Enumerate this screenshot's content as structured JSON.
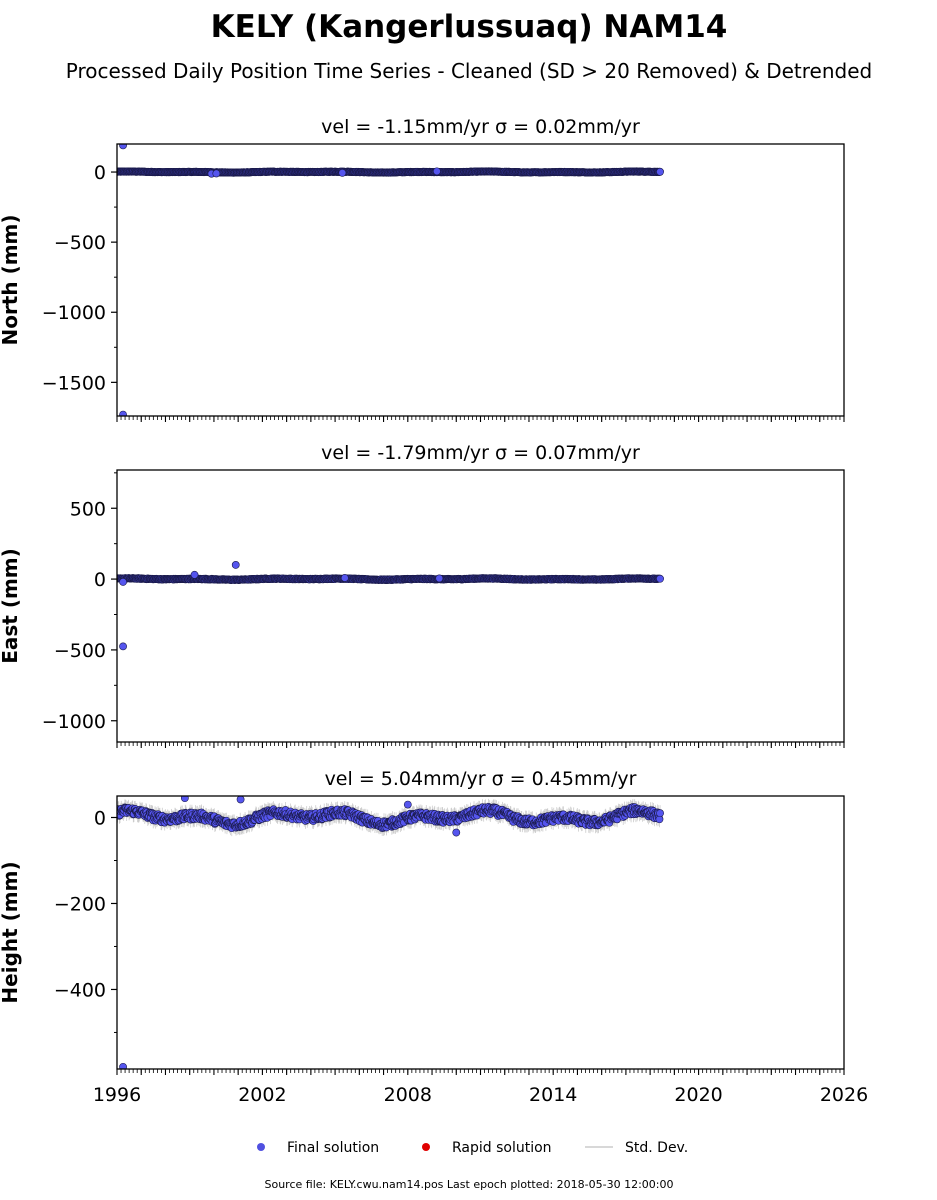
{
  "figure": {
    "title": "KELY (Kangerlussuaq) NAM14",
    "subtitle": "Processed Daily Position Time Series - Cleaned (SD > 20 Removed) & Detrended",
    "footer": "Source file: KELY.cwu.nam14.pos  Last epoch plotted: 2018-05-30 12:00:00"
  },
  "legend": {
    "placement": "bottom-center",
    "items": [
      {
        "label": "Final solution",
        "color": "#5050e0",
        "marker": "circle"
      },
      {
        "label": "Rapid solution",
        "color": "#e00000",
        "marker": "circle"
      },
      {
        "label": "Std. Dev.",
        "color": "#cccccc",
        "marker": "line"
      }
    ]
  },
  "colors": {
    "final": "#5555ee",
    "marker_edge": "#1a1a4a",
    "rapid": "#e00000",
    "stddev": "#cccccc"
  },
  "chart_data": [
    {
      "type": "scatter",
      "title": "vel = -1.15mm/yr   σ = 0.02mm/yr",
      "xlabel": "",
      "ylabel": "North (mm)",
      "xlim": [
        1996,
        2026
      ],
      "ylim": [
        -1740,
        200
      ],
      "yticks": [
        0,
        -500,
        -1000,
        -1500
      ],
      "ytick_labels": [
        "0",
        "−500",
        "−1000",
        "−1500"
      ],
      "xticks": [
        1996,
        2002,
        2008,
        2014,
        2020,
        2026
      ],
      "xtick_labels": [],
      "data_range": [
        1996.0,
        2018.41
      ],
      "trend_amplitude": 3,
      "noise": 2,
      "outliers": [
        {
          "x": 1996.25,
          "y": 190
        },
        {
          "x": 1996.25,
          "y": -1730
        },
        {
          "x": 1999.9,
          "y": -12
        },
        {
          "x": 2000.1,
          "y": -10
        },
        {
          "x": 2005.3,
          "y": -6
        },
        {
          "x": 2009.2,
          "y": 5
        }
      ]
    },
    {
      "type": "scatter",
      "title": "vel = -1.79mm/yr   σ = 0.07mm/yr",
      "xlabel": "",
      "ylabel": "East (mm)",
      "xlim": [
        1996,
        2026
      ],
      "ylim": [
        -1150,
        770
      ],
      "yticks": [
        500,
        0,
        -500,
        -1000
      ],
      "ytick_labels": [
        "500",
        "0",
        "−500",
        "−1000"
      ],
      "xticks": [
        1996,
        2002,
        2008,
        2014,
        2020,
        2026
      ],
      "xtick_labels": [],
      "data_range": [
        1996.0,
        2018.41
      ],
      "trend_amplitude": 4,
      "noise": 3,
      "outliers": [
        {
          "x": 1996.25,
          "y": -475
        },
        {
          "x": 1996.25,
          "y": -20
        },
        {
          "x": 1999.2,
          "y": 30
        },
        {
          "x": 2000.9,
          "y": 100
        },
        {
          "x": 2005.4,
          "y": 8
        },
        {
          "x": 2009.3,
          "y": 5
        }
      ]
    },
    {
      "type": "scatter",
      "title": "vel = 5.04mm/yr   σ = 0.45mm/yr",
      "xlabel": "",
      "ylabel": "Height (mm)",
      "xlim": [
        1996,
        2026
      ],
      "ylim": [
        -585,
        50
      ],
      "yticks": [
        0,
        -200,
        -400
      ],
      "ytick_labels": [
        "0",
        "−200",
        "−400"
      ],
      "xticks": [
        1996,
        2002,
        2008,
        2014,
        2020,
        2026
      ],
      "xtick_labels": [
        "1996",
        "2002",
        "2008",
        "2014",
        "2020",
        "2026"
      ],
      "data_range": [
        1996.0,
        2018.41
      ],
      "trend_amplitude": 14,
      "noise": 9,
      "outliers": [
        {
          "x": 1996.25,
          "y": -580
        },
        {
          "x": 1998.8,
          "y": 45
        },
        {
          "x": 2001.1,
          "y": 42
        },
        {
          "x": 2008.0,
          "y": 30
        },
        {
          "x": 2010.0,
          "y": -35
        }
      ]
    }
  ]
}
